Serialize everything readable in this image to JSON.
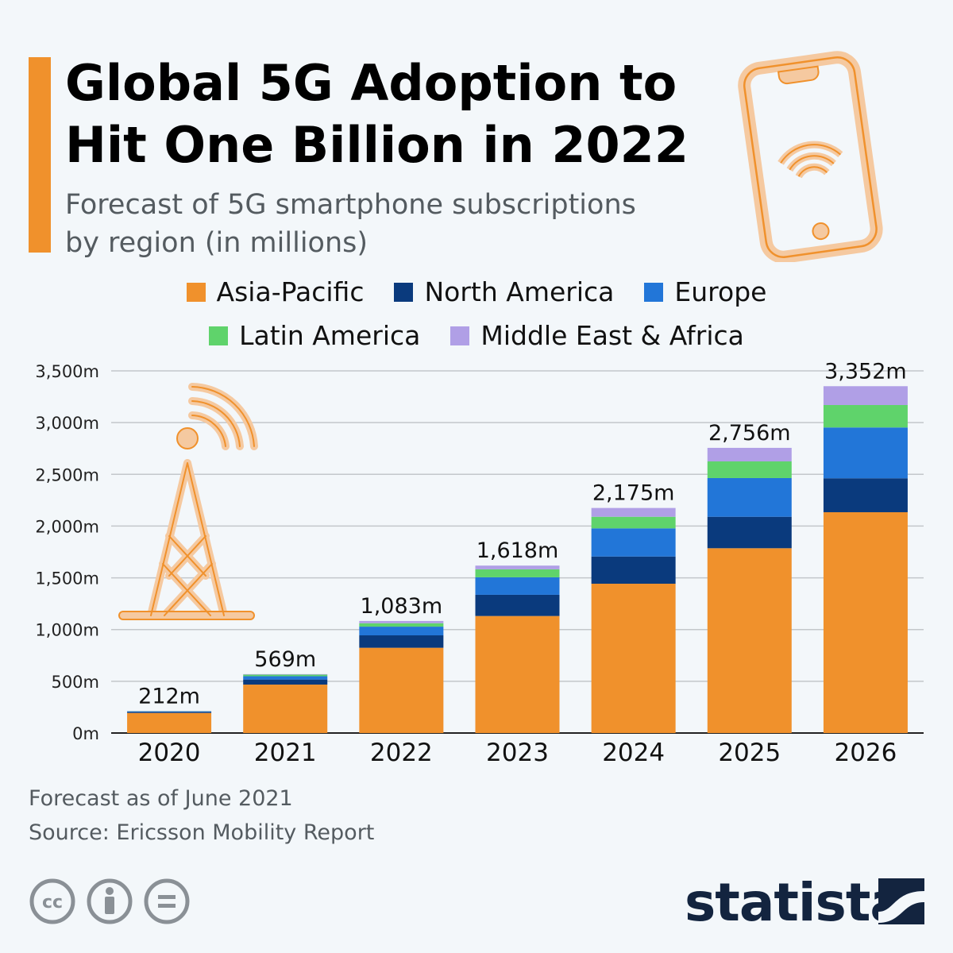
{
  "header": {
    "title_line1": "Global 5G Adoption to",
    "title_line2": "Hit One Billion in 2022",
    "subtitle_line1": "Forecast of 5G smartphone subscriptions",
    "subtitle_line2": "by region (in millions)",
    "accent_color": "#f0912c"
  },
  "icons": [
    "smartphone-wifi-icon",
    "cell-tower-icon",
    "cc-icon",
    "attribution-icon",
    "no-derivatives-icon",
    "statista-logo-icon"
  ],
  "chart_data": {
    "type": "bar",
    "stacked": true,
    "categories": [
      "2020",
      "2021",
      "2022",
      "2023",
      "2024",
      "2025",
      "2026"
    ],
    "series": [
      {
        "name": "Asia-Pacific",
        "color": "#f0912c",
        "values": [
          194,
          468,
          824,
          1131,
          1443,
          1786,
          2134
        ]
      },
      {
        "name": "North America",
        "color": "#0a3a7d",
        "values": [
          10,
          49,
          120,
          205,
          263,
          304,
          328
        ]
      },
      {
        "name": "Europe",
        "color": "#2276d8",
        "values": [
          6,
          32,
          84,
          169,
          272,
          374,
          491
        ]
      },
      {
        "name": "Latin America",
        "color": "#5fd36b",
        "values": [
          1,
          15,
          33,
          77,
          112,
          161,
          217
        ]
      },
      {
        "name": "Middle East & Africa",
        "color": "#b09fe6",
        "values": [
          1,
          5,
          22,
          36,
          85,
          131,
          182
        ]
      }
    ],
    "totals": [
      212,
      569,
      1083,
      1618,
      2175,
      2756,
      3352
    ],
    "total_labels": [
      "212m",
      "569m",
      "1,083m",
      "1,618m",
      "2,175m",
      "2,756m",
      "3,352m"
    ],
    "ylim": [
      0,
      3500
    ],
    "yticks": [
      0,
      500,
      1000,
      1500,
      2000,
      2500,
      3000,
      3500
    ],
    "ytick_labels": [
      "0m",
      "500m",
      "1,000m",
      "1,500m",
      "2,000m",
      "2,500m",
      "3,000m",
      "3,500m"
    ],
    "grid": true,
    "legend_placement": "top"
  },
  "footer": {
    "note": "Forecast as of June 2021",
    "source": "Source: Ericsson Mobility Report",
    "brand": "statista"
  }
}
